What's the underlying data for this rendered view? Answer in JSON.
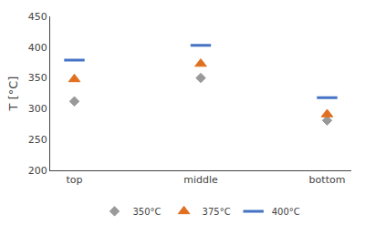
{
  "chart_data": {
    "type": "scatter",
    "categories": [
      "top",
      "middle",
      "bottom"
    ],
    "series": [
      {
        "name": "350°C",
        "color": "#999999",
        "marker": "diamond",
        "values": [
          312,
          350,
          281
        ]
      },
      {
        "name": "375°C",
        "color": "#E07020",
        "marker": "triangle",
        "values": [
          348,
          373,
          291
        ]
      },
      {
        "name": "400°C",
        "color": "#4472C4",
        "marker": "hline",
        "values": [
          379,
          403,
          318
        ]
      }
    ],
    "ylabel": "T [°C]",
    "ylim": [
      200,
      450
    ],
    "yticks": [
      200,
      250,
      300,
      350,
      400,
      450
    ],
    "grid": false,
    "legend": "bottom"
  }
}
